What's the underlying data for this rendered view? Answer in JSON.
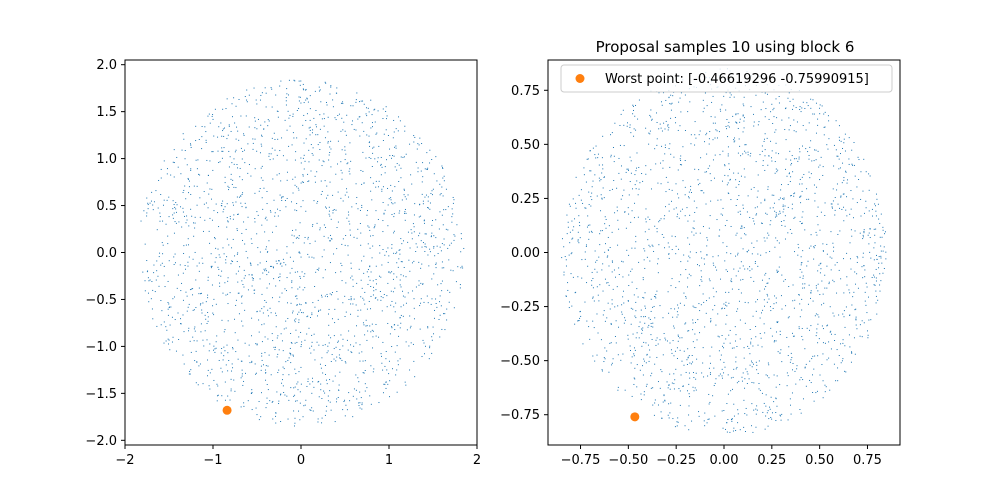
{
  "chart_data": [
    {
      "type": "scatter",
      "title": "",
      "xlabel": "",
      "ylabel": "",
      "xlim": [
        -2.0,
        2.0
      ],
      "ylim": [
        -2.05,
        2.05
      ],
      "xticks": [
        -2,
        -1,
        0,
        1,
        2
      ],
      "yticks": [
        -2.0,
        -1.5,
        -1.0,
        -0.5,
        0.0,
        0.5,
        1.0,
        1.5,
        2.0
      ],
      "grid": false,
      "series": [
        {
          "kind": "uniform-disk-samples",
          "color": "#1f77b4",
          "center": [
            0.0,
            0.0
          ],
          "radius": 1.85,
          "approx_count": 2000
        },
        {
          "kind": "highlight-point",
          "color": "#ff7f0e",
          "points": [
            [
              -0.84,
              -1.68
            ]
          ]
        }
      ]
    },
    {
      "type": "scatter",
      "title": "Proposal samples 10 using block 6",
      "xlabel": "",
      "ylabel": "",
      "xlim": [
        -0.92,
        0.92
      ],
      "ylim": [
        -0.89,
        0.89
      ],
      "xticks": [
        -0.75,
        -0.5,
        -0.25,
        0.0,
        0.25,
        0.5,
        0.75
      ],
      "yticks": [
        -0.75,
        -0.5,
        -0.25,
        0.0,
        0.25,
        0.5,
        0.75
      ],
      "grid": false,
      "legend": {
        "placement": "upper-left",
        "entries": [
          "Worst point: [-0.46619296 -0.75990915]"
        ]
      },
      "series": [
        {
          "kind": "uniform-disk-samples",
          "color": "#1f77b4",
          "center": [
            0.0,
            0.0
          ],
          "radius": 0.85,
          "approx_count": 2000
        },
        {
          "name": "Worst point: [-0.46619296 -0.75990915]",
          "kind": "highlight-point",
          "color": "#ff7f0e",
          "points": [
            [
              -0.46619296,
              -0.75990915
            ]
          ]
        }
      ]
    }
  ]
}
